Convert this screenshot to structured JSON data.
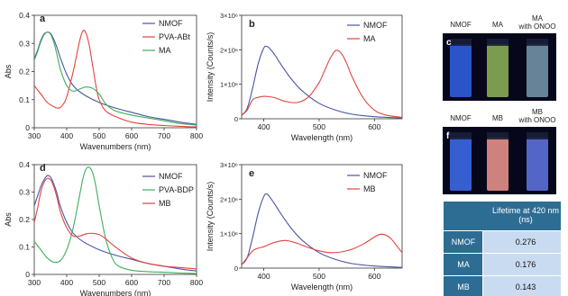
{
  "chart_data": [
    {
      "panel": "a",
      "type": "line",
      "xlabel": "Wavenumbers (nm)",
      "ylabel": "Abs",
      "xlim": [
        300,
        800
      ],
      "ylim": [
        0,
        0.4
      ],
      "xticks": [
        300,
        400,
        500,
        600,
        700,
        800
      ],
      "yticks": [
        0,
        0.1,
        0.2,
        0.3,
        0.4
      ],
      "legend": "top-right",
      "series": [
        {
          "name": "NMOF",
          "color": "#4a55a2",
          "x": [
            300,
            310,
            320,
            330,
            340,
            350,
            360,
            370,
            380,
            400,
            420,
            450,
            500,
            550,
            600,
            650,
            700,
            750,
            800
          ],
          "y": [
            0.245,
            0.275,
            0.31,
            0.333,
            0.34,
            0.336,
            0.315,
            0.285,
            0.25,
            0.19,
            0.15,
            0.12,
            0.09,
            0.07,
            0.055,
            0.04,
            0.03,
            0.02,
            0.012
          ]
        },
        {
          "name": "PVA-ABt",
          "color": "#e3433f",
          "x": [
            300,
            320,
            340,
            360,
            370,
            380,
            390,
            400,
            420,
            440,
            450,
            460,
            470,
            480,
            490,
            500,
            520,
            550,
            600,
            650,
            700,
            750,
            800
          ],
          "y": [
            0.15,
            0.12,
            0.09,
            0.075,
            0.07,
            0.072,
            0.085,
            0.11,
            0.2,
            0.31,
            0.345,
            0.335,
            0.29,
            0.22,
            0.15,
            0.1,
            0.06,
            0.04,
            0.02,
            0.012,
            0.008,
            0.005,
            0.003
          ]
        },
        {
          "name": "MA",
          "color": "#3fae5a",
          "x": [
            300,
            310,
            320,
            330,
            340,
            350,
            360,
            370,
            380,
            400,
            420,
            440,
            460,
            480,
            500,
            520,
            550,
            600,
            650,
            700,
            750,
            800
          ],
          "y": [
            0.24,
            0.27,
            0.305,
            0.33,
            0.34,
            0.333,
            0.305,
            0.26,
            0.21,
            0.15,
            0.13,
            0.138,
            0.145,
            0.14,
            0.12,
            0.085,
            0.06,
            0.045,
            0.035,
            0.025,
            0.015,
            0.01
          ]
        }
      ]
    },
    {
      "panel": "b",
      "type": "line",
      "xlabel": "Wavelength (nm)",
      "ylabel": "Intensity (Counts/s)",
      "xlim": [
        360,
        650
      ],
      "ylim": [
        0,
        3000000
      ],
      "xticks": [
        400,
        500,
        600
      ],
      "ytick_labels": [
        "0",
        "1×10⁶",
        "2×10⁶",
        "3×10⁶"
      ],
      "legend": "top-right",
      "series": [
        {
          "name": "NMOF",
          "color": "#4a55a2",
          "x": [
            360,
            370,
            380,
            390,
            400,
            405,
            410,
            420,
            430,
            450,
            470,
            500,
            530,
            560,
            600,
            650
          ],
          "y": [
            100000,
            300000,
            900000,
            1600000,
            2050000,
            2100000,
            2050000,
            1850000,
            1600000,
            1150000,
            800000,
            450000,
            250000,
            130000,
            60000,
            20000
          ]
        },
        {
          "name": "MA",
          "color": "#e3433f",
          "x": [
            360,
            370,
            380,
            390,
            400,
            410,
            420,
            430,
            440,
            460,
            480,
            500,
            510,
            520,
            530,
            540,
            550,
            560,
            580,
            600,
            620,
            650
          ],
          "y": [
            100000,
            250000,
            550000,
            620000,
            650000,
            640000,
            610000,
            550000,
            500000,
            470000,
            620000,
            1050000,
            1400000,
            1750000,
            1980000,
            1900000,
            1600000,
            1200000,
            600000,
            250000,
            110000,
            40000
          ]
        }
      ]
    },
    {
      "panel": "d",
      "type": "line",
      "xlabel": "Wavenumbers (nm)",
      "ylabel": "Abs",
      "xlim": [
        300,
        800
      ],
      "ylim": [
        0,
        0.4
      ],
      "xticks": [
        300,
        400,
        500,
        600,
        700,
        800
      ],
      "yticks": [
        0,
        0.1,
        0.2,
        0.3,
        0.4
      ],
      "legend": "top-right",
      "series": [
        {
          "name": "NMOF",
          "color": "#4a55a2",
          "x": [
            300,
            310,
            320,
            330,
            340,
            350,
            360,
            370,
            380,
            400,
            420,
            450,
            500,
            550,
            600,
            650,
            700,
            750,
            800
          ],
          "y": [
            0.25,
            0.285,
            0.32,
            0.345,
            0.36,
            0.355,
            0.33,
            0.295,
            0.25,
            0.19,
            0.15,
            0.12,
            0.09,
            0.07,
            0.055,
            0.04,
            0.03,
            0.02,
            0.012
          ]
        },
        {
          "name": "PVA-BDP",
          "color": "#3fae5a",
          "x": [
            300,
            320,
            340,
            360,
            380,
            400,
            420,
            440,
            450,
            460,
            470,
            480,
            490,
            500,
            520,
            540,
            560,
            600,
            650,
            700,
            750,
            800
          ],
          "y": [
            0.12,
            0.09,
            0.06,
            0.045,
            0.05,
            0.09,
            0.17,
            0.29,
            0.35,
            0.385,
            0.39,
            0.37,
            0.32,
            0.25,
            0.13,
            0.06,
            0.03,
            0.015,
            0.01,
            0.008,
            0.005,
            0.003
          ]
        },
        {
          "name": "MB",
          "color": "#e3433f",
          "x": [
            300,
            310,
            320,
            330,
            340,
            350,
            360,
            370,
            380,
            400,
            420,
            440,
            460,
            480,
            500,
            520,
            550,
            600,
            650,
            700,
            750,
            800
          ],
          "y": [
            0.19,
            0.24,
            0.3,
            0.335,
            0.35,
            0.345,
            0.32,
            0.28,
            0.23,
            0.17,
            0.14,
            0.14,
            0.148,
            0.15,
            0.145,
            0.13,
            0.1,
            0.06,
            0.04,
            0.03,
            0.025,
            0.02
          ]
        }
      ]
    },
    {
      "panel": "e",
      "type": "line",
      "xlabel": "Wavelength (nm)",
      "ylabel": "Intensity (Counts/s)",
      "xlim": [
        360,
        650
      ],
      "ylim": [
        0,
        3000000
      ],
      "xticks": [
        400,
        500,
        600
      ],
      "ytick_labels": [
        "0",
        "1×10⁶",
        "2×10⁶",
        "3×10⁶"
      ],
      "legend": "top-right",
      "series": [
        {
          "name": "NMOF",
          "color": "#4a55a2",
          "x": [
            360,
            370,
            380,
            390,
            400,
            405,
            410,
            420,
            430,
            450,
            470,
            500,
            530,
            560,
            600,
            650
          ],
          "y": [
            100000,
            300000,
            900000,
            1600000,
            2080000,
            2150000,
            2080000,
            1850000,
            1600000,
            1150000,
            800000,
            450000,
            250000,
            130000,
            60000,
            20000
          ]
        },
        {
          "name": "MB",
          "color": "#e3433f",
          "x": [
            360,
            370,
            380,
            390,
            400,
            420,
            440,
            460,
            480,
            500,
            520,
            540,
            560,
            580,
            600,
            610,
            620,
            630,
            640,
            650
          ],
          "y": [
            100000,
            300000,
            500000,
            580000,
            620000,
            750000,
            800000,
            720000,
            600000,
            500000,
            450000,
            470000,
            550000,
            700000,
            900000,
            980000,
            960000,
            850000,
            650000,
            450000
          ]
        }
      ]
    }
  ],
  "photos": {
    "c": {
      "letter": "c",
      "labels": [
        "NMOF",
        "MA",
        "MA\nwith ONOO"
      ],
      "vial_colors": [
        "#2f5bd8",
        "#86a854",
        "#6f8ea3"
      ]
    },
    "f": {
      "letter": "f",
      "labels": [
        "NMOF",
        "MB",
        "MB\nwith ONOO"
      ],
      "vial_colors": [
        "#3a66e0",
        "#e08c86",
        "#5a6fd6"
      ]
    }
  },
  "lifetime_table": {
    "header": "Lifetime at 420 nm\n(ns)",
    "rows": [
      {
        "label": "NMOF",
        "value": "0.276"
      },
      {
        "label": "MA",
        "value": "0.176"
      },
      {
        "label": "MB",
        "value": "0.143"
      }
    ],
    "colors": {
      "header_bg": "#2e6d93",
      "label_bg": "#2e6d93",
      "cell_bg": "#c9dbf0"
    }
  }
}
